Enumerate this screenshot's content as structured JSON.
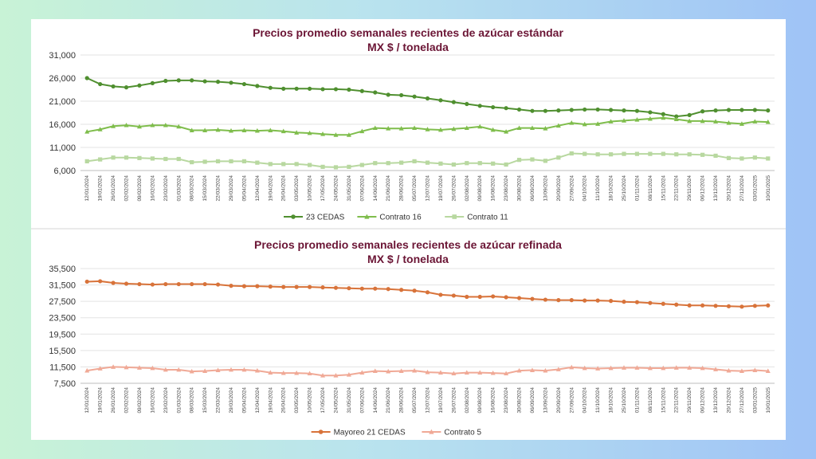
{
  "colors": {
    "s23": "#4f8f2f",
    "c16": "#7fbd4c",
    "c11": "#b8d8a0",
    "mayoreo": "#d8733a",
    "c5": "#f0a996"
  },
  "chart_data": [
    {
      "type": "line",
      "title": "Precios promedio semanales recientes de azúcar estándar",
      "subtitle": "MX $ / tonelada",
      "ylim": [
        6000,
        31000
      ],
      "yticks": [
        6000,
        11000,
        16000,
        21000,
        26000,
        31000
      ],
      "ytick_labels": [
        "6,000",
        "11,000",
        "16,000",
        "21,000",
        "26,000",
        "31,000"
      ],
      "grid": true,
      "legend": "bottom",
      "x": [
        "12/01/2024",
        "19/01/2024",
        "26/01/2024",
        "02/02/2024",
        "09/02/2024",
        "16/02/2024",
        "23/02/2024",
        "01/03/2024",
        "08/03/2024",
        "15/03/2024",
        "22/03/2024",
        "29/03/2024",
        "05/04/2024",
        "12/04/2024",
        "19/04/2024",
        "26/04/2024",
        "03/05/2024",
        "10/05/2024",
        "17/05/2024",
        "24/05/2024",
        "31/05/2024",
        "07/06/2024",
        "14/06/2024",
        "21/06/2024",
        "28/06/2024",
        "05/07/2024",
        "12/07/2024",
        "19/07/2024",
        "26/07/2024",
        "02/08/2024",
        "09/08/2024",
        "16/08/2024",
        "23/08/2024",
        "30/08/2024",
        "06/09/2024",
        "13/09/2024",
        "20/09/2024",
        "27/09/2024",
        "04/10/2024",
        "11/10/2024",
        "18/10/2024",
        "25/10/2024",
        "01/11/2024",
        "08/11/2024",
        "15/11/2024",
        "22/11/2024",
        "29/11/2024",
        "06/12/2024",
        "13/12/2024",
        "20/12/2024",
        "27/12/2024",
        "03/01/2025",
        "10/01/2025"
      ],
      "series": [
        {
          "name": "23 CEDAS",
          "color_key": "s23",
          "marker": "circle",
          "values": [
            26000,
            24700,
            24200,
            24000,
            24400,
            24900,
            25400,
            25500,
            25500,
            25300,
            25200,
            25000,
            24700,
            24300,
            23900,
            23700,
            23700,
            23700,
            23600,
            23600,
            23500,
            23200,
            22900,
            22400,
            22300,
            22000,
            21600,
            21200,
            20800,
            20400,
            20000,
            19700,
            19500,
            19200,
            18900,
            18900,
            19000,
            19100,
            19200,
            19200,
            19100,
            19000,
            18900,
            18600,
            18200,
            17700,
            18000,
            18800,
            19000,
            19100,
            19100,
            19100,
            19000
          ]
        },
        {
          "name": "Contrato 16",
          "color_key": "c16",
          "marker": "triangle",
          "values": [
            14400,
            14900,
            15600,
            15800,
            15500,
            15800,
            15800,
            15500,
            14700,
            14700,
            14800,
            14600,
            14700,
            14600,
            14700,
            14500,
            14200,
            14100,
            13900,
            13700,
            13700,
            14500,
            15200,
            15100,
            15100,
            15200,
            14900,
            14800,
            15000,
            15200,
            15500,
            14800,
            14400,
            15200,
            15200,
            15100,
            15700,
            16300,
            16000,
            16100,
            16600,
            16800,
            17000,
            17200,
            17400,
            17100,
            16700,
            16700,
            16600,
            16300,
            16100,
            16600,
            16500
          ]
        },
        {
          "name": "Contrato 11",
          "color_key": "c11",
          "marker": "square",
          "values": [
            8000,
            8400,
            8800,
            8800,
            8700,
            8600,
            8500,
            8500,
            7800,
            7900,
            8000,
            8000,
            8000,
            7700,
            7400,
            7400,
            7400,
            7200,
            6800,
            6700,
            6800,
            7200,
            7600,
            7600,
            7700,
            8000,
            7700,
            7500,
            7300,
            7600,
            7600,
            7500,
            7300,
            8300,
            8400,
            8100,
            8800,
            9700,
            9600,
            9500,
            9500,
            9600,
            9600,
            9600,
            9600,
            9500,
            9500,
            9400,
            9200,
            8700,
            8600,
            8800,
            8600
          ]
        }
      ]
    },
    {
      "type": "line",
      "title": "Precios promedio semanales recientes de azúcar refinada",
      "subtitle": "MX $ / tonelada",
      "ylim": [
        7500,
        35500
      ],
      "yticks": [
        7500,
        11500,
        15500,
        19500,
        23500,
        27500,
        31500,
        35500
      ],
      "ytick_labels": [
        "7,500",
        "11,500",
        "15,500",
        "19,500",
        "23,500",
        "27,500",
        "31,500",
        "35,500"
      ],
      "grid": true,
      "legend": "bottom",
      "x": [
        "12/01/2024",
        "19/01/2024",
        "26/01/2024",
        "02/02/2024",
        "09/02/2024",
        "16/02/2024",
        "23/02/2024",
        "01/03/2024",
        "08/03/2024",
        "15/03/2024",
        "22/03/2024",
        "29/03/2024",
        "05/04/2024",
        "12/04/2024",
        "19/04/2024",
        "26/04/2024",
        "03/05/2024",
        "10/05/2024",
        "17/05/2024",
        "24/05/2024",
        "31/05/2024",
        "07/06/2024",
        "14/06/2024",
        "21/06/2024",
        "28/06/2024",
        "05/07/2024",
        "12/07/2024",
        "19/07/2024",
        "26/07/2024",
        "02/08/2024",
        "09/08/2024",
        "16/08/2024",
        "23/08/2024",
        "30/08/2024",
        "06/09/2024",
        "13/09/2024",
        "20/09/2024",
        "27/09/2024",
        "04/10/2024",
        "11/10/2024",
        "18/10/2024",
        "25/10/2024",
        "01/11/2024",
        "08/11/2024",
        "15/11/2024",
        "22/11/2024",
        "29/11/2024",
        "06/12/2024",
        "13/12/2024",
        "20/12/2024",
        "27/12/2024",
        "03/01/2025",
        "10/01/2025"
      ],
      "series": [
        {
          "name": "Mayoreo 21 CEDAS",
          "color_key": "mayoreo",
          "marker": "circle",
          "values": [
            32300,
            32400,
            32000,
            31800,
            31700,
            31600,
            31700,
            31700,
            31700,
            31700,
            31600,
            31300,
            31200,
            31200,
            31100,
            31000,
            31000,
            31000,
            30900,
            30800,
            30700,
            30600,
            30600,
            30500,
            30300,
            30100,
            29700,
            29100,
            28900,
            28600,
            28600,
            28700,
            28500,
            28300,
            28100,
            27900,
            27800,
            27800,
            27700,
            27700,
            27600,
            27400,
            27300,
            27100,
            26900,
            26700,
            26500,
            26500,
            26400,
            26300,
            26200,
            26400,
            26500
          ]
        },
        {
          "name": "Contrato 5",
          "color_key": "c5",
          "marker": "triangle",
          "values": [
            10600,
            11100,
            11500,
            11400,
            11300,
            11200,
            10800,
            10800,
            10400,
            10500,
            10700,
            10800,
            10800,
            10600,
            10100,
            10000,
            10000,
            9900,
            9400,
            9400,
            9600,
            10100,
            10500,
            10400,
            10500,
            10600,
            10200,
            10100,
            9900,
            10100,
            10100,
            10000,
            9900,
            10600,
            10700,
            10600,
            10900,
            11400,
            11200,
            11100,
            11200,
            11300,
            11300,
            11200,
            11200,
            11300,
            11300,
            11200,
            10900,
            10600,
            10500,
            10700,
            10500
          ]
        }
      ]
    }
  ]
}
